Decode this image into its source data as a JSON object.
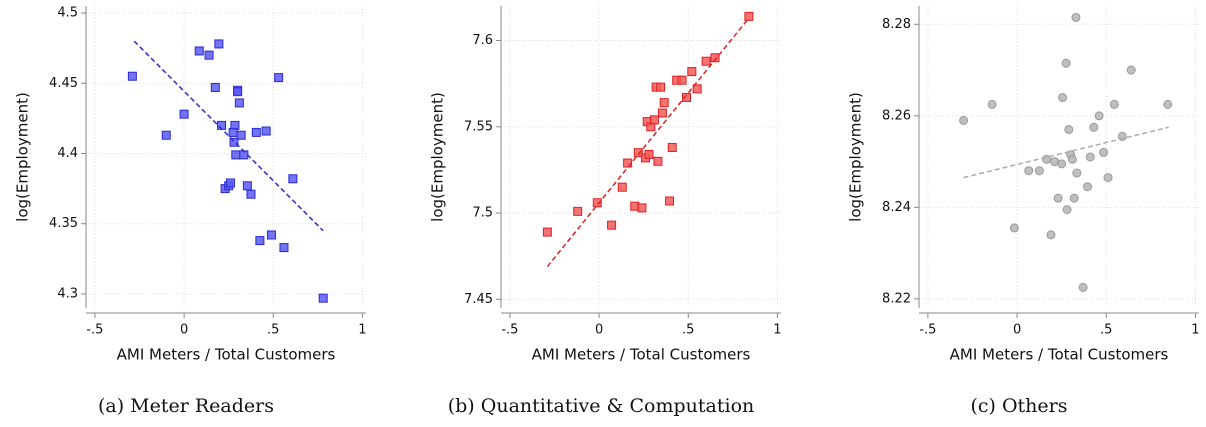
{
  "chart_data": [
    {
      "type": "scatter",
      "caption": "(a) Meter Readers",
      "xlabel": "AMI Meters / Total Customers",
      "ylabel": "log(Employment)",
      "marker": "square",
      "color": "#5a5af5",
      "edge": "#2a2ad0",
      "fit_color": "#2a2ad0",
      "grid": true,
      "x": [
        -0.29,
        -0.1,
        0.0,
        0.085,
        0.14,
        0.175,
        0.195,
        0.21,
        0.23,
        0.25,
        0.26,
        0.285,
        0.275,
        0.28,
        0.29,
        0.3,
        0.3,
        0.31,
        0.32,
        0.335,
        0.355,
        0.375,
        0.405,
        0.425,
        0.46,
        0.49,
        0.53,
        0.56,
        0.61,
        0.78
      ],
      "y": [
        4.455,
        4.413,
        4.428,
        4.473,
        4.47,
        4.447,
        4.478,
        4.42,
        4.375,
        4.377,
        4.379,
        4.42,
        4.415,
        4.408,
        4.399,
        4.445,
        4.444,
        4.436,
        4.413,
        4.399,
        4.377,
        4.371,
        4.415,
        4.338,
        4.416,
        4.342,
        4.454,
        4.333,
        4.382,
        4.297
      ],
      "fit": {
        "x": [
          -0.28,
          0.78
        ],
        "y": [
          4.48,
          4.345
        ]
      },
      "xlim": [
        -0.55,
        1.02
      ],
      "ylim": [
        4.29,
        4.505
      ],
      "xticks": [
        {
          "value": -0.5,
          "label": "-.5"
        },
        0,
        {
          "value": 0.5,
          "label": ".5"
        },
        1
      ],
      "yticks": [
        4.3,
        4.35,
        4.4,
        4.45,
        4.5
      ]
    },
    {
      "type": "scatter",
      "caption": "(b) Quantitative & Computation",
      "xlabel": "AMI Meters / Total Customers",
      "ylabel": "log(Employment)",
      "marker": "square",
      "color": "#f55a5a",
      "edge": "#e02020",
      "fit_color": "#e02020",
      "grid": true,
      "x": [
        -0.29,
        -0.12,
        -0.01,
        0.07,
        0.13,
        0.16,
        0.2,
        0.22,
        0.24,
        0.26,
        0.27,
        0.28,
        0.29,
        0.31,
        0.32,
        0.33,
        0.345,
        0.355,
        0.365,
        0.395,
        0.41,
        0.435,
        0.465,
        0.49,
        0.52,
        0.55,
        0.6,
        0.65,
        0.84
      ],
      "y": [
        7.489,
        7.501,
        7.506,
        7.493,
        7.515,
        7.529,
        7.504,
        7.535,
        7.503,
        7.532,
        7.553,
        7.534,
        7.55,
        7.554,
        7.573,
        7.53,
        7.573,
        7.558,
        7.564,
        7.507,
        7.538,
        7.577,
        7.577,
        7.567,
        7.582,
        7.572,
        7.588,
        7.59,
        7.614
      ],
      "fit": {
        "x": [
          -0.29,
          0.84
        ],
        "y": [
          7.469,
          7.613
        ]
      },
      "xlim": [
        -0.55,
        1.02
      ],
      "ylim": [
        7.445,
        7.62
      ],
      "xticks": [
        {
          "value": -0.5,
          "label": "-.5"
        },
        0,
        {
          "value": 0.5,
          "label": ".5"
        },
        1
      ],
      "yticks": [
        7.45,
        7.5,
        7.55,
        7.6
      ]
    },
    {
      "type": "scatter",
      "caption": "(c) Others",
      "xlabel": "AMI Meters / Total Customers",
      "ylabel": "log(Employment)",
      "marker": "circle",
      "color": "#b4b4b4",
      "edge": "#999999",
      "fit_color": "#aaaaaa",
      "grid": true,
      "x": [
        -0.3,
        -0.14,
        -0.015,
        0.065,
        0.125,
        0.165,
        0.19,
        0.21,
        0.23,
        0.25,
        0.255,
        0.275,
        0.28,
        0.29,
        0.3,
        0.31,
        0.32,
        0.335,
        0.33,
        0.37,
        0.395,
        0.41,
        0.43,
        0.46,
        0.485,
        0.51,
        0.545,
        0.59,
        0.64,
        0.845
      ],
      "y": [
        8.259,
        8.2625,
        8.2355,
        8.248,
        8.248,
        8.2505,
        8.234,
        8.25,
        8.242,
        8.2495,
        8.264,
        8.2715,
        8.2395,
        8.257,
        8.2515,
        8.2505,
        8.242,
        8.2475,
        8.2815,
        8.2225,
        8.2445,
        8.251,
        8.2575,
        8.26,
        8.252,
        8.2465,
        8.2625,
        8.2555,
        8.27,
        8.2625
      ],
      "fit": {
        "x": [
          -0.3,
          0.85
        ],
        "y": [
          8.2465,
          8.2575
        ]
      },
      "xlim": [
        -0.55,
        1.02
      ],
      "ylim": [
        8.218,
        8.284
      ],
      "xticks": [
        {
          "value": -0.5,
          "label": "-.5"
        },
        0,
        {
          "value": 0.5,
          "label": ".5"
        },
        1
      ],
      "yticks": [
        8.22,
        8.24,
        8.26,
        8.28
      ]
    }
  ]
}
